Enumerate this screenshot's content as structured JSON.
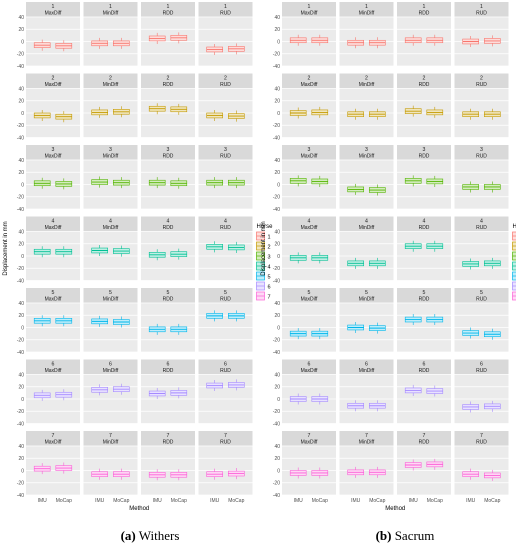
{
  "captions": [
    {
      "label": "(a)",
      "text": " Withers"
    },
    {
      "label": "(b)",
      "text": " Sacrum"
    }
  ],
  "chart_data": [
    {
      "type": "box",
      "panel": "Withers",
      "xlabel": "Method",
      "ylabel": "Displacement in mm",
      "x_categories": [
        "IMU",
        "MoCap"
      ],
      "row_labels": [
        "1",
        "2",
        "3",
        "4",
        "5",
        "6",
        "7"
      ],
      "col_labels": [
        "MaxDiff",
        "MinDiff",
        "RDD",
        "RUD"
      ],
      "ylim": [
        -40,
        40
      ],
      "y_ticks": [
        "40",
        "20",
        "0",
        "-20",
        "-40"
      ],
      "legend": {
        "title": "Horse",
        "placement": "right",
        "entries": [
          "1",
          "2",
          "3",
          "4",
          "5",
          "6",
          "7"
        ],
        "colors": [
          "#F8766D",
          "#C49A00",
          "#53B400",
          "#00C094",
          "#00B6EB",
          "#A58AFF",
          "#FB61D7"
        ]
      },
      "medians": [
        [
          [
            -6,
            -7
          ],
          [
            -3,
            -3
          ],
          [
            5,
            6
          ],
          [
            -13,
            -12
          ]
        ],
        [
          [
            -4,
            -6
          ],
          [
            1,
            2
          ],
          [
            7,
            6
          ],
          [
            -4,
            -5
          ]
        ],
        [
          [
            2,
            1
          ],
          [
            4,
            3
          ],
          [
            3,
            2
          ],
          [
            3,
            3
          ]
        ],
        [
          [
            7,
            7
          ],
          [
            9,
            8
          ],
          [
            2,
            3
          ],
          [
            15,
            14
          ]
        ],
        [
          [
            11,
            11
          ],
          [
            10,
            9
          ],
          [
            -3,
            -3
          ],
          [
            19,
            19
          ]
        ],
        [
          [
            6,
            7
          ],
          [
            15,
            16
          ],
          [
            9,
            10
          ],
          [
            22,
            23
          ]
        ],
        [
          [
            3,
            4
          ],
          [
            -6,
            -6
          ],
          [
            -7,
            -7
          ],
          [
            -6,
            -5
          ]
        ]
      ]
    },
    {
      "type": "box",
      "panel": "Sacrum",
      "xlabel": "Method",
      "ylabel": "Displacement in mm",
      "x_categories": [
        "IMU",
        "MoCap"
      ],
      "row_labels": [
        "1",
        "2",
        "3",
        "4",
        "5",
        "6",
        "7"
      ],
      "col_labels": [
        "MaxDiff",
        "MinDiff",
        "RDD",
        "RUD"
      ],
      "ylim": [
        -40,
        40
      ],
      "y_ticks": [
        "40",
        "20",
        "0",
        "-20",
        "-40"
      ],
      "legend": {
        "title": "Horse",
        "placement": "right",
        "entries": [
          "1",
          "2",
          "3",
          "4",
          "5",
          "6",
          "7"
        ],
        "colors": [
          "#F8766D",
          "#C49A00",
          "#53B400",
          "#00C094",
          "#00B6EB",
          "#A58AFF",
          "#FB61D7"
        ]
      },
      "medians": [
        [
          [
            2,
            2
          ],
          [
            -2,
            -2
          ],
          [
            2,
            2
          ],
          [
            0,
            1
          ]
        ],
        [
          [
            0,
            1
          ],
          [
            -2,
            -2
          ],
          [
            3,
            1
          ],
          [
            -2,
            -2
          ]
        ],
        [
          [
            6,
            5
          ],
          [
            -8,
            -9
          ],
          [
            6,
            5
          ],
          [
            -4,
            -4
          ]
        ],
        [
          [
            -3,
            -3
          ],
          [
            -12,
            -12
          ],
          [
            16,
            16
          ],
          [
            -13,
            -12
          ]
        ],
        [
          [
            -10,
            -10
          ],
          [
            0,
            -1
          ],
          [
            13,
            13
          ],
          [
            -9,
            -11
          ]
        ],
        [
          [
            0,
            0
          ],
          [
            -11,
            -11
          ],
          [
            14,
            13
          ],
          [
            -13,
            -12
          ]
        ],
        [
          [
            -4,
            -4
          ],
          [
            -3,
            -3
          ],
          [
            9,
            10
          ],
          [
            -6,
            -8
          ]
        ]
      ]
    }
  ]
}
